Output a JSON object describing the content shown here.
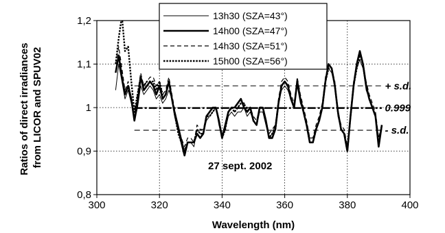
{
  "chart_data": {
    "type": "line",
    "xlabel": "Wavelength (nm)",
    "ylabel_lines": [
      "Ratios of direct irradiances",
      "from LICOR and SPUV02"
    ],
    "xlim": [
      300,
      400
    ],
    "ylim": [
      0.8,
      1.2
    ],
    "xticks": [
      300,
      320,
      340,
      360,
      380,
      400
    ],
    "xtick_labels": [
      "300",
      "320",
      "340",
      "360",
      "380",
      "400"
    ],
    "yticks": [
      0.8,
      0.9,
      1.0,
      1.1,
      1.2
    ],
    "ytick_labels": [
      "0,8",
      "0,9",
      "1",
      "1,1",
      "1,2"
    ],
    "grid": true,
    "legend_position": "top-center",
    "annotation": "27 sept. 2002",
    "reference_lines": [
      {
        "label": "+ s.d.",
        "value": 1.05,
        "style": "dashed"
      },
      {
        "label": "0.999",
        "value": 0.999,
        "style": "dash-dot-thick"
      },
      {
        "label": "- s.d.",
        "value": 0.948,
        "style": "dashed"
      }
    ],
    "x": [
      306,
      307,
      308,
      309,
      310,
      311,
      312,
      313,
      314,
      315,
      316,
      317,
      318,
      319,
      320,
      321,
      322,
      323,
      324,
      325,
      326,
      327,
      328,
      329,
      330,
      331,
      332,
      333,
      334,
      335,
      336,
      337,
      338,
      339,
      340,
      341,
      342,
      343,
      344,
      345,
      346,
      347,
      348,
      349,
      350,
      351,
      352,
      353,
      354,
      355,
      356,
      357,
      358,
      359,
      360,
      361,
      362,
      363,
      364,
      365,
      366,
      367,
      368,
      369,
      370,
      371,
      372,
      373,
      374,
      375,
      376,
      377,
      378,
      379,
      380,
      381,
      382,
      383,
      384,
      385,
      386,
      387,
      388,
      389,
      390,
      391
    ],
    "series": [
      {
        "name": "13h30 (SZA=43°)",
        "style": "thin-solid",
        "values": [
          1.04,
          1.1,
          1.06,
          1.02,
          1.04,
          1.01,
          0.97,
          1.0,
          1.05,
          1.03,
          1.04,
          1.05,
          1.04,
          1.02,
          1.03,
          1.01,
          1.02,
          1.04,
          1.02,
          0.99,
          0.96,
          0.93,
          0.9,
          0.92,
          0.92,
          0.91,
          0.95,
          0.94,
          0.94,
          0.97,
          0.98,
          0.99,
          1.0,
          0.96,
          0.93,
          0.95,
          0.98,
          0.99,
          0.98,
          0.99,
          0.99,
          1.0,
          0.98,
          0.99,
          0.97,
          0.96,
          0.99,
          0.99,
          0.96,
          0.93,
          0.94,
          0.96,
          1.01,
          1.04,
          1.05,
          1.04,
          1.02,
          1.0,
          1.05,
          1.01,
          0.99,
          0.96,
          0.93,
          0.93,
          0.95,
          0.97,
          1.0,
          1.06,
          1.09,
          1.08,
          1.05,
          0.98,
          0.95,
          0.94,
          0.9,
          0.98,
          1.05,
          1.09,
          1.11,
          1.09,
          1.04,
          1.02,
          1.0,
          0.98,
          0.92,
          0.95
        ]
      },
      {
        "name": "14h00 (SZA=47°)",
        "style": "thick-solid",
        "values": [
          1.08,
          1.12,
          1.07,
          1.03,
          1.05,
          1.02,
          0.97,
          1.01,
          1.07,
          1.04,
          1.05,
          1.06,
          1.05,
          1.03,
          1.05,
          1.02,
          1.03,
          1.06,
          1.02,
          0.98,
          0.95,
          0.92,
          0.89,
          0.92,
          0.92,
          0.92,
          0.94,
          0.93,
          0.94,
          0.98,
          0.99,
          1.0,
          1.0,
          0.97,
          0.93,
          0.96,
          0.99,
          1.0,
          1.0,
          1.01,
          1.02,
          1.0,
          0.99,
          1.0,
          0.97,
          0.96,
          1.0,
          1.0,
          0.97,
          0.93,
          0.93,
          0.95,
          1.01,
          1.05,
          1.06,
          1.05,
          1.02,
          1.0,
          1.06,
          1.02,
          0.99,
          0.96,
          0.92,
          0.92,
          0.95,
          0.97,
          1.0,
          1.06,
          1.1,
          1.09,
          1.05,
          0.99,
          0.95,
          0.94,
          0.9,
          0.98,
          1.05,
          1.1,
          1.13,
          1.1,
          1.05,
          1.02,
          1.0,
          0.98,
          0.91,
          0.96
        ]
      },
      {
        "name": "14h30 (SZA=51°)",
        "style": "dashed",
        "values": [
          1.1,
          1.14,
          1.09,
          1.04,
          1.06,
          1.02,
          0.98,
          1.03,
          1.08,
          1.05,
          1.06,
          1.07,
          1.07,
          1.05,
          1.06,
          1.03,
          1.04,
          1.07,
          1.03,
          0.99,
          0.95,
          0.93,
          0.91,
          0.93,
          0.93,
          0.92,
          0.96,
          0.95,
          0.95,
          0.98,
          0.99,
          1.0,
          1.0,
          0.97,
          0.94,
          0.96,
          0.99,
          1.0,
          0.99,
          1.0,
          1.01,
          1.01,
          1.0,
          1.0,
          0.98,
          0.97,
          1.0,
          1.0,
          0.97,
          0.94,
          0.95,
          0.96,
          1.02,
          1.06,
          1.07,
          1.06,
          1.03,
          1.01,
          1.07,
          1.03,
          1.0,
          0.97,
          0.93,
          0.93,
          0.96,
          0.98,
          1.01,
          1.07,
          1.1,
          1.09,
          1.06,
          0.99,
          0.96,
          0.95,
          0.91,
          0.99,
          1.06,
          1.1,
          1.12,
          1.1,
          1.06,
          1.03,
          1.01,
          0.99,
          0.93,
          0.96
        ]
      },
      {
        "name": "15h00 (SZA=56°)",
        "style": "dotted-thick",
        "values": [
          1.1,
          1.16,
          1.21,
          1.13,
          1.14,
          1.06,
          0.99,
          1.03,
          1.07,
          1.05,
          1.06,
          1.06,
          1.06,
          1.04,
          1.06,
          1.03,
          1.03,
          1.06,
          1.02,
          0.98,
          0.94,
          0.92,
          0.9,
          0.92,
          0.92,
          0.92,
          0.95,
          0.94,
          0.94,
          0.98,
          0.98,
          0.99,
          1.0,
          0.97,
          0.93,
          0.95,
          0.99,
          1.0,
          0.99,
          1.0,
          1.01,
          1.01,
          0.99,
          1.0,
          0.97,
          0.96,
          1.0,
          1.0,
          0.97,
          0.93,
          0.94,
          0.95,
          1.01,
          1.05,
          1.06,
          1.05,
          1.02,
          1.0,
          1.06,
          1.02,
          0.99,
          0.96,
          0.92,
          0.92,
          0.95,
          0.97,
          1.0,
          1.06,
          1.09,
          1.09,
          1.05,
          0.99,
          0.95,
          0.94,
          0.9,
          0.98,
          1.05,
          1.09,
          1.12,
          1.1,
          1.05,
          1.02,
          1.0,
          0.98,
          0.92,
          0.96
        ]
      }
    ]
  }
}
